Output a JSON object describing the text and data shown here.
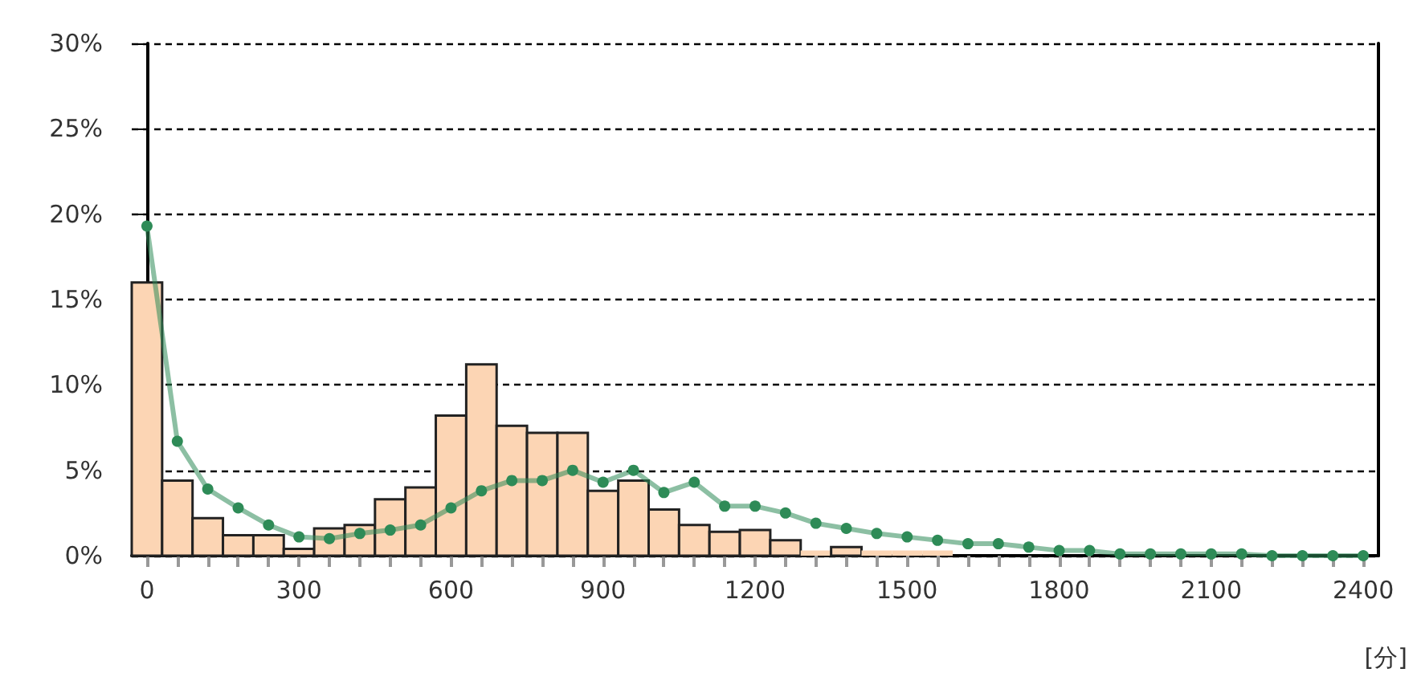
{
  "chart_data": {
    "type": "histogram",
    "xlabel": "[分]",
    "bins": [
      -30,
      30,
      90,
      150,
      210,
      270,
      330,
      390,
      450,
      510,
      570,
      630,
      690,
      750,
      810,
      870,
      930,
      990,
      1050,
      1110,
      1170,
      1230,
      1290,
      1350,
      1410,
      1470,
      1530,
      1590,
      1650,
      1710,
      1770,
      1830,
      1890,
      1950,
      2010,
      2070,
      2130,
      2190,
      2250,
      2310,
      2370,
      2430
    ],
    "series": [
      {
        "color": "#fcd5b4",
        "values": [
          16,
          4.4,
          2.2,
          1.2,
          1.2,
          0.4,
          1.6,
          1.8,
          3.3,
          4,
          8.2,
          11.2,
          7.6,
          7.2,
          7.2,
          3.8,
          4.4,
          2.7,
          1.8,
          1.4,
          1.5,
          0.9,
          0.3,
          0.5,
          0.3,
          0.3,
          0.3,
          null,
          null,
          0,
          null,
          null,
          0,
          0,
          0,
          0,
          0,
          0,
          0,
          0,
          0
        ]
      },
      {
        "type": "line",
        "color": "#2e8b57",
        "marker": "circle",
        "x": [
          0,
          60,
          120,
          180,
          240,
          300,
          360,
          420,
          480,
          540,
          600,
          660,
          720,
          780,
          840,
          900,
          960,
          1020,
          1080,
          1140,
          1200,
          1260,
          1320,
          1380,
          1440,
          1500,
          1560,
          1620,
          1680,
          1740,
          1800,
          1860,
          1920,
          1980,
          2040,
          2100,
          2160,
          2220,
          2280,
          2340,
          2400
        ],
        "values": [
          19.3,
          6.7,
          3.9,
          2.8,
          1.8,
          1.1,
          1,
          1.3,
          1.5,
          1.8,
          2.8,
          3.8,
          4.4,
          4.4,
          5,
          4.3,
          5,
          3.7,
          4.3,
          2.9,
          2.9,
          2.5,
          1.9,
          1.6,
          1.3,
          1.1,
          0.9,
          0.7,
          0.7,
          0.5,
          0.3,
          0.3,
          0.1,
          0.1,
          0.1,
          0.1,
          0.1,
          0,
          0,
          0,
          0
        ]
      }
    ],
    "xlim": [
      -30,
      2430
    ],
    "xticks": [
      0,
      {
        "value": 60,
        "label": null
      },
      {
        "value": 120,
        "label": null
      },
      {
        "value": 180,
        "label": null
      },
      {
        "value": 240,
        "label": null
      },
      300,
      {
        "value": 360,
        "label": null
      },
      {
        "value": 420,
        "label": null
      },
      {
        "value": 480,
        "label": null
      },
      {
        "value": 540,
        "label": null
      },
      600,
      {
        "value": 660,
        "label": null
      },
      {
        "value": 720,
        "label": null
      },
      {
        "value": 780,
        "label": null
      },
      {
        "value": 840,
        "label": null
      },
      900,
      {
        "value": 960,
        "label": null
      },
      {
        "value": 1020,
        "label": null
      },
      {
        "value": 1080,
        "label": null
      },
      {
        "value": 1140,
        "label": null
      },
      1200,
      {
        "value": 1260,
        "label": null
      },
      {
        "value": 1320,
        "label": null
      },
      {
        "value": 1380,
        "label": null
      },
      {
        "value": 1440,
        "label": null
      },
      1500,
      {
        "value": 1560,
        "label": null
      },
      {
        "value": 1620,
        "label": null
      },
      {
        "value": 1680,
        "label": null
      },
      {
        "value": 1740,
        "label": null
      },
      1800,
      {
        "value": 1860,
        "label": null
      },
      {
        "value": 1920,
        "label": null
      },
      {
        "value": 1980,
        "label": null
      },
      {
        "value": 2040,
        "label": null
      },
      2100,
      {
        "value": 2160,
        "label": null
      },
      {
        "value": 2220,
        "label": null
      },
      {
        "value": 2280,
        "label": null
      },
      {
        "value": 2340,
        "label": null
      },
      2400
    ],
    "ylim": [
      0,
      30
    ],
    "yticks": [
      {
        "value": 0,
        "label": "0%"
      },
      {
        "value": 5,
        "label": "5%"
      },
      {
        "value": 10,
        "label": "10%"
      },
      {
        "value": 15,
        "label": "15%"
      },
      {
        "value": 20,
        "label": "20%"
      },
      {
        "value": 25,
        "label": "25%"
      },
      {
        "value": 30,
        "label": "30%"
      }
    ],
    "grid": "y",
    "line_style": "solid"
  }
}
